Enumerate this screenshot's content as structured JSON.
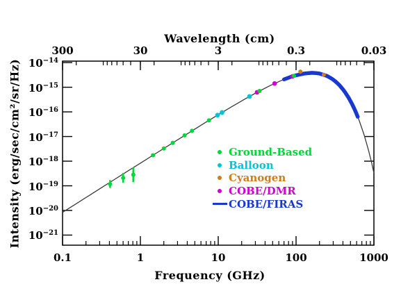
{
  "figure": {
    "background": "#ffffff"
  },
  "chart_data": {
    "type": "line",
    "top_axis_label": "Wavelength (cm)",
    "xlabel": "Frequency (GHz)",
    "ylabel": "Intensity (erg/sec/cm²/sr/Hz)",
    "x_scale": "log",
    "y_scale": "log",
    "x_range": [
      0.1,
      1000
    ],
    "y_range_exp": [
      -21.41,
      -13.94
    ],
    "grid": "off",
    "legend_position": "middle-right",
    "x_ticks": [
      {
        "v": 0.1,
        "label": "0.1"
      },
      {
        "v": 1,
        "label": "1"
      },
      {
        "v": 10,
        "label": "10"
      },
      {
        "v": 100,
        "label": "100"
      },
      {
        "v": 1000,
        "label": "1000"
      }
    ],
    "top_ticks": [
      {
        "v": 0.1,
        "label": "300"
      },
      {
        "v": 1,
        "label": "30"
      },
      {
        "v": 10,
        "label": "3"
      },
      {
        "v": 100,
        "label": "0.3"
      },
      {
        "v": 1000,
        "label": "0.03"
      }
    ],
    "y_tick_base": "10",
    "y_ticks": [
      {
        "exp": -14,
        "sup": "−14"
      },
      {
        "exp": -15,
        "sup": "−15"
      },
      {
        "exp": -16,
        "sup": "−16"
      },
      {
        "exp": -17,
        "sup": "−17"
      },
      {
        "exp": -18,
        "sup": "−18"
      },
      {
        "exp": -19,
        "sup": "−19"
      },
      {
        "exp": -20,
        "sup": "−20"
      },
      {
        "exp": -21,
        "sup": "−21"
      }
    ],
    "blackbody_curve": {
      "color": "#3a3a3a",
      "points": [
        [
          0.1,
          8.4e-21
        ],
        [
          0.15,
          1.88e-20
        ],
        [
          0.22,
          4.05e-20
        ],
        [
          0.32,
          8.6e-20
        ],
        [
          0.47,
          1.85e-19
        ],
        [
          0.68,
          3.87e-19
        ],
        [
          1,
          8.3e-19
        ],
        [
          1.5,
          1.86e-18
        ],
        [
          2.2,
          3.97e-18
        ],
        [
          3.2,
          8.33e-18
        ],
        [
          4.7,
          1.77e-17
        ],
        [
          6.8,
          3.64e-17
        ],
        [
          10,
          7.66e-17
        ],
        [
          15,
          1.65e-16
        ],
        [
          22,
          3.32e-16
        ],
        [
          32,
          6.38e-16
        ],
        [
          47,
          1.19e-15
        ],
        [
          68,
          2.01e-15
        ],
        [
          70,
          2.08e-15
        ],
        [
          85,
          2.61e-15
        ],
        [
          100,
          3.06e-15
        ],
        [
          130,
          3.65e-15
        ],
        [
          160,
          3.84e-15
        ],
        [
          180,
          3.77e-15
        ],
        [
          200,
          3.59e-15
        ],
        [
          250,
          2.86e-15
        ],
        [
          290,
          2.19e-15
        ],
        [
          320,
          1.73e-15
        ],
        [
          360,
          1.22e-15
        ],
        [
          400,
          8.23e-16
        ],
        [
          430,
          6.03e-16
        ],
        [
          470,
          3.89e-16
        ],
        [
          520,
          2.18e-16
        ],
        [
          560,
          1.35e-16
        ],
        [
          590,
          9.3e-17
        ],
        [
          620,
          6.36e-17
        ],
        [
          650,
          4.32e-17
        ],
        [
          750,
          1.14e-17
        ],
        [
          850,
          2.85e-18
        ],
        [
          930,
          9.13e-19
        ],
        [
          1000,
          3.31e-19
        ]
      ]
    },
    "firas": {
      "label": "COBE/FIRAS",
      "color": "#1838cf",
      "freq_range": [
        70,
        620
      ],
      "stroke_width": 5.5
    },
    "series": [
      {
        "name": "Balloon",
        "color": "#00c4d8",
        "r": 3.4,
        "points": [
          {
            "f": 9.8,
            "i": 7.37e-17
          },
          {
            "f": 11.2,
            "i": 9.5e-17
          },
          {
            "f": 25.2,
            "i": 4.22e-16
          }
        ]
      },
      {
        "name": "COBE/DMR",
        "color": "#cf00cf",
        "r": 3.3,
        "points": [
          {
            "f": 31.5,
            "i": 6.21e-16
          },
          {
            "f": 53,
            "i": 1.42e-15
          },
          {
            "f": 90,
            "i": 2.77e-15
          }
        ]
      },
      {
        "name": "Ground-Based",
        "color": "#00d839",
        "r": 3,
        "points": [
          {
            "f": 0.408,
            "i": 1.18e-19,
            "err": 0.16
          },
          {
            "f": 0.6,
            "i": 2.1e-19,
            "err": 0.2
          },
          {
            "f": 0.81,
            "i": 2.8e-19,
            "err": 0.3
          },
          {
            "f": 1.45,
            "i": 1.74e-18
          },
          {
            "f": 2.0,
            "i": 3.29e-18
          },
          {
            "f": 2.6,
            "i": 5.53e-18
          },
          {
            "f": 3.7,
            "i": 1.11e-17
          },
          {
            "f": 4.6,
            "i": 1.7e-17
          },
          {
            "f": 7.6,
            "i": 4.52e-17
          },
          {
            "f": 33.9,
            "i": 7.03e-16
          },
          {
            "f": 94,
            "i": 2.89e-15
          }
        ]
      },
      {
        "name": "Cyanogen",
        "color": "#cf7d18",
        "r": 3,
        "points": [
          {
            "f": 113.6,
            "i": 4.3e-15
          },
          {
            "f": 227,
            "i": 3.22e-15
          }
        ]
      }
    ],
    "legend": [
      {
        "label": "Ground-Based",
        "color": "#00d839",
        "marker": "dot"
      },
      {
        "label": "Balloon",
        "color": "#00c4d8",
        "marker": "dot"
      },
      {
        "label": "Cyanogen",
        "color": "#cf7d18",
        "marker": "dot"
      },
      {
        "label": "COBE/DMR",
        "color": "#cf00cf",
        "marker": "dot"
      },
      {
        "label": "COBE/FIRAS",
        "color": "#1838cf",
        "marker": "line"
      }
    ]
  }
}
